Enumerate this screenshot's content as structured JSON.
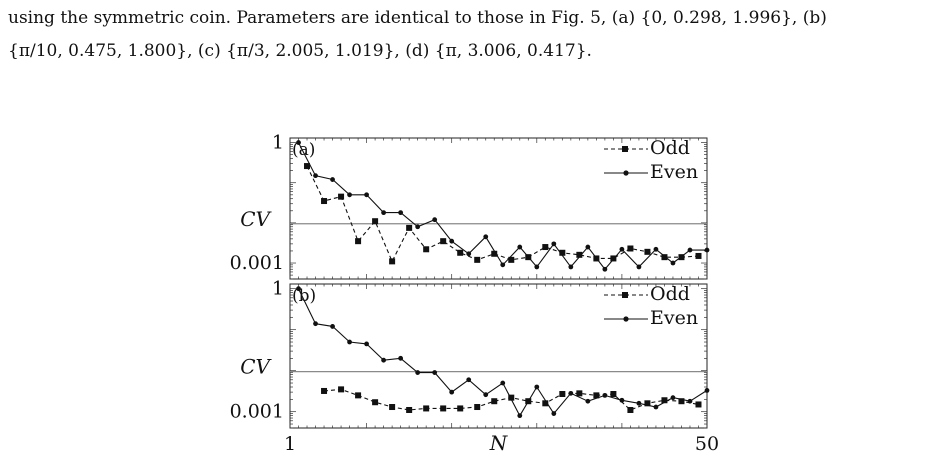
{
  "caption": {
    "line1": "using the symmetric coin. Parameters are identical to those in Fig. 5, (a) {0, 0.298, 1.996}, (b)",
    "line2": "{π/10, 0.475, 1.800}, (c) {π/3, 2.005, 1.019}, (d) {π, 3.006, 0.417}."
  },
  "chart_data": [
    {
      "type": "line",
      "panel_label": "(a)",
      "xlabel": "",
      "ylabel": "CV",
      "yscale": "log",
      "xlim": [
        1,
        50
      ],
      "ylim": [
        0.0004,
        1.3
      ],
      "ytick_labels": [
        "1",
        "0.001"
      ],
      "reference_level": 0.0095,
      "legend": {
        "position": "top-right",
        "entries": [
          "Odd",
          "Even"
        ]
      },
      "series": [
        {
          "name": "Odd",
          "style": "dashed-square",
          "x": [
            3,
            5,
            7,
            9,
            11,
            13,
            15,
            17,
            19,
            21,
            23,
            25,
            27,
            29,
            31,
            33,
            35,
            37,
            39,
            41,
            43,
            45,
            47,
            49
          ],
          "y": [
            0.26,
            0.035,
            0.045,
            0.0035,
            0.011,
            0.0011,
            0.0075,
            0.0022,
            0.0035,
            0.0018,
            0.0012,
            0.0017,
            0.0012,
            0.0014,
            0.0025,
            0.0018,
            0.0016,
            0.0013,
            0.0013,
            0.0023,
            0.0019,
            0.0014,
            0.0014,
            0.0015
          ]
        },
        {
          "name": "Even",
          "style": "solid-dot",
          "x": [
            2,
            4,
            6,
            8,
            10,
            12,
            14,
            16,
            18,
            20,
            22,
            24,
            26,
            28,
            30,
            32,
            34,
            36,
            38,
            40,
            42,
            44,
            46,
            48,
            50
          ],
          "y": [
            1.0,
            0.15,
            0.12,
            0.05,
            0.05,
            0.018,
            0.018,
            0.008,
            0.012,
            0.0035,
            0.0017,
            0.0045,
            0.0009,
            0.0025,
            0.0008,
            0.003,
            0.0008,
            0.0025,
            0.0007,
            0.0022,
            0.0008,
            0.0022,
            0.001,
            0.0021,
            0.0021
          ]
        }
      ]
    },
    {
      "type": "line",
      "panel_label": "(b)",
      "xlabel": "N",
      "ylabel": "CV",
      "yscale": "log",
      "xlim": [
        1,
        50
      ],
      "ylim": [
        0.0004,
        1.3
      ],
      "xtick_labels": [
        "1",
        "50"
      ],
      "ytick_labels": [
        "1",
        "0.001"
      ],
      "reference_level": 0.0095,
      "legend": {
        "position": "top-right",
        "entries": [
          "Odd",
          "Even"
        ]
      },
      "series": [
        {
          "name": "Odd",
          "style": "dashed-square",
          "x": [
            5,
            7,
            9,
            11,
            13,
            15,
            17,
            19,
            21,
            23,
            25,
            27,
            29,
            31,
            33,
            35,
            37,
            39,
            41,
            43,
            45,
            47,
            49
          ],
          "y": [
            0.0032,
            0.0035,
            0.0025,
            0.0017,
            0.0013,
            0.0011,
            0.0012,
            0.0012,
            0.0012,
            0.0013,
            0.0018,
            0.0022,
            0.0018,
            0.0016,
            0.0027,
            0.0028,
            0.0025,
            0.0027,
            0.0011,
            0.0016,
            0.0019,
            0.0018,
            0.0015
          ]
        },
        {
          "name": "Even",
          "style": "solid-dot",
          "x": [
            2,
            4,
            6,
            8,
            10,
            12,
            14,
            16,
            18,
            20,
            22,
            24,
            26,
            28,
            30,
            32,
            34,
            36,
            38,
            40,
            42,
            44,
            46,
            48,
            50
          ],
          "y": [
            1.0,
            0.14,
            0.12,
            0.05,
            0.045,
            0.018,
            0.02,
            0.009,
            0.009,
            0.003,
            0.006,
            0.0026,
            0.005,
            0.0008,
            0.004,
            0.0009,
            0.0028,
            0.0018,
            0.0025,
            0.0019,
            0.0016,
            0.0013,
            0.0022,
            0.0018,
            0.0033
          ]
        }
      ]
    }
  ]
}
